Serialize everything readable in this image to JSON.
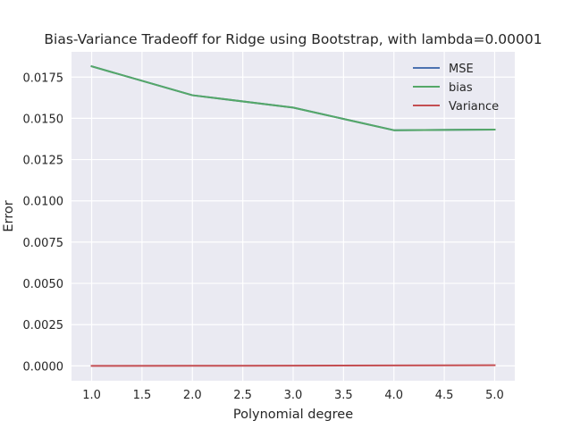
{
  "chart_data": {
    "type": "line",
    "title": "Bias-Variance Tradeoff for Ridge using Bootstrap, with lambda=0.00001",
    "xlabel": "Polynomial degree",
    "ylabel": "Error",
    "xlim": [
      0.8,
      5.2
    ],
    "ylim": [
      -0.0009,
      0.01903
    ],
    "x": [
      1,
      2,
      3,
      4,
      5
    ],
    "x_ticks": [
      1.0,
      1.5,
      2.0,
      2.5,
      3.0,
      3.5,
      4.0,
      4.5,
      5.0
    ],
    "x_tick_labels": [
      "1.0",
      "1.5",
      "2.0",
      "2.5",
      "3.0",
      "3.5",
      "4.0",
      "4.5",
      "5.0"
    ],
    "y_ticks": [
      0.0,
      0.0025,
      0.005,
      0.0075,
      0.01,
      0.0125,
      0.015,
      0.0175
    ],
    "y_tick_labels": [
      "0.0000",
      "0.0025",
      "0.0050",
      "0.0075",
      "0.0100",
      "0.0125",
      "0.0150",
      "0.0175"
    ],
    "grid": true,
    "legend_position": "top-right",
    "series": [
      {
        "name": "MSE",
        "color": "#4c72b0",
        "values": [
          0.01815,
          0.0164,
          0.01565,
          0.01428,
          0.01432
        ]
      },
      {
        "name": "bias",
        "color": "#55a868",
        "values": [
          0.01815,
          0.0164,
          0.01565,
          0.01428,
          0.01432
        ]
      },
      {
        "name": "Variance",
        "color": "#c44e52",
        "values": [
          1e-06,
          5e-06,
          1.2e-05,
          2.5e-05,
          4e-05
        ]
      }
    ],
    "colors": {
      "plot_background": "#eaeaf2",
      "grid": "#ffffff",
      "text": "#262626"
    }
  }
}
